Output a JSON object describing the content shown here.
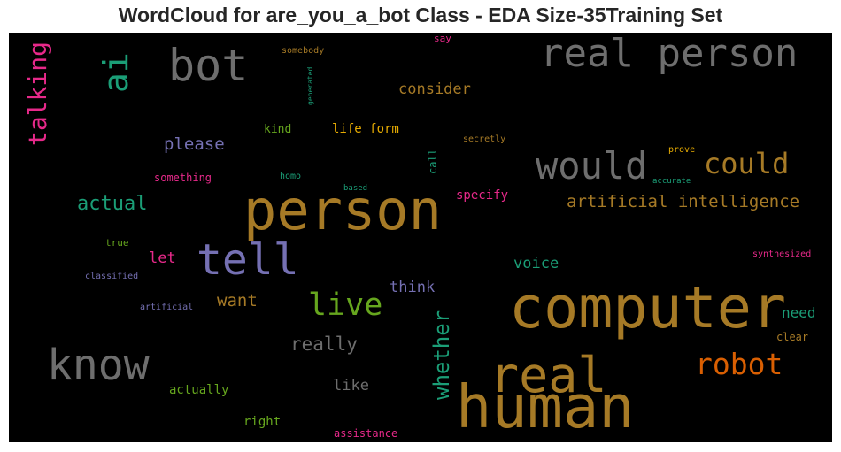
{
  "chart_data": {
    "type": "wordcloud",
    "title": "WordCloud for are_you_a_bot Class - EDA Size-35Training Set",
    "colors": {
      "gray": "#6e6e6e",
      "gold": "#a67a26",
      "teal": "#1b9e77",
      "pink": "#e7298a",
      "purple": "#7570b3",
      "green": "#66a61e",
      "orange": "#d95f02"
    },
    "words": [
      {
        "text": "bot",
        "color": "#6e6e6e"
      },
      {
        "text": "real person",
        "color": "#6e6e6e"
      },
      {
        "text": "ai",
        "color": "#1b9e77"
      },
      {
        "text": "talking",
        "color": "#e7298a"
      },
      {
        "text": "say",
        "color": "#e7298a"
      },
      {
        "text": "somebody",
        "color": "#a67a26"
      },
      {
        "text": "generated",
        "color": "#1b9e77"
      },
      {
        "text": "consider",
        "color": "#a67a26"
      },
      {
        "text": "kind",
        "color": "#66a61e"
      },
      {
        "text": "life form",
        "color": "#e6ab02"
      },
      {
        "text": "secretly",
        "color": "#a67a26"
      },
      {
        "text": "please",
        "color": "#7570b3"
      },
      {
        "text": "call",
        "color": "#1b9e77"
      },
      {
        "text": "prove",
        "color": "#e6ab02"
      },
      {
        "text": "would",
        "color": "#6e6e6e"
      },
      {
        "text": "could",
        "color": "#a67a26"
      },
      {
        "text": "something",
        "color": "#e7298a"
      },
      {
        "text": "homo",
        "color": "#1b9e77"
      },
      {
        "text": "accurate",
        "color": "#1b9e77"
      },
      {
        "text": "based",
        "color": "#1b9e77"
      },
      {
        "text": "specify",
        "color": "#e7298a"
      },
      {
        "text": "actual",
        "color": "#1b9e77"
      },
      {
        "text": "person",
        "color": "#a67a26"
      },
      {
        "text": "artificial intelligence",
        "color": "#a67a26"
      },
      {
        "text": "true",
        "color": "#66a61e"
      },
      {
        "text": "let",
        "color": "#e7298a"
      },
      {
        "text": "tell",
        "color": "#7570b3"
      },
      {
        "text": "synthesized",
        "color": "#e7298a"
      },
      {
        "text": "voice",
        "color": "#1b9e77"
      },
      {
        "text": "classified",
        "color": "#7570b3"
      },
      {
        "text": "think",
        "color": "#7570b3"
      },
      {
        "text": "want",
        "color": "#a67a26"
      },
      {
        "text": "live",
        "color": "#66a61e"
      },
      {
        "text": "computer",
        "color": "#a67a26"
      },
      {
        "text": "artificial",
        "color": "#7570b3"
      },
      {
        "text": "need",
        "color": "#1b9e77"
      },
      {
        "text": "whether",
        "color": "#1b9e77"
      },
      {
        "text": "clear",
        "color": "#a67a26"
      },
      {
        "text": "really",
        "color": "#6e6e6e"
      },
      {
        "text": "know",
        "color": "#6e6e6e"
      },
      {
        "text": "robot",
        "color": "#d95f02"
      },
      {
        "text": "real",
        "color": "#a67a26"
      },
      {
        "text": "like",
        "color": "#6e6e6e"
      },
      {
        "text": "actually",
        "color": "#66a61e"
      },
      {
        "text": "human",
        "color": "#a67a26"
      },
      {
        "text": "right",
        "color": "#66a61e"
      },
      {
        "text": "assistance",
        "color": "#e7298a"
      }
    ]
  }
}
